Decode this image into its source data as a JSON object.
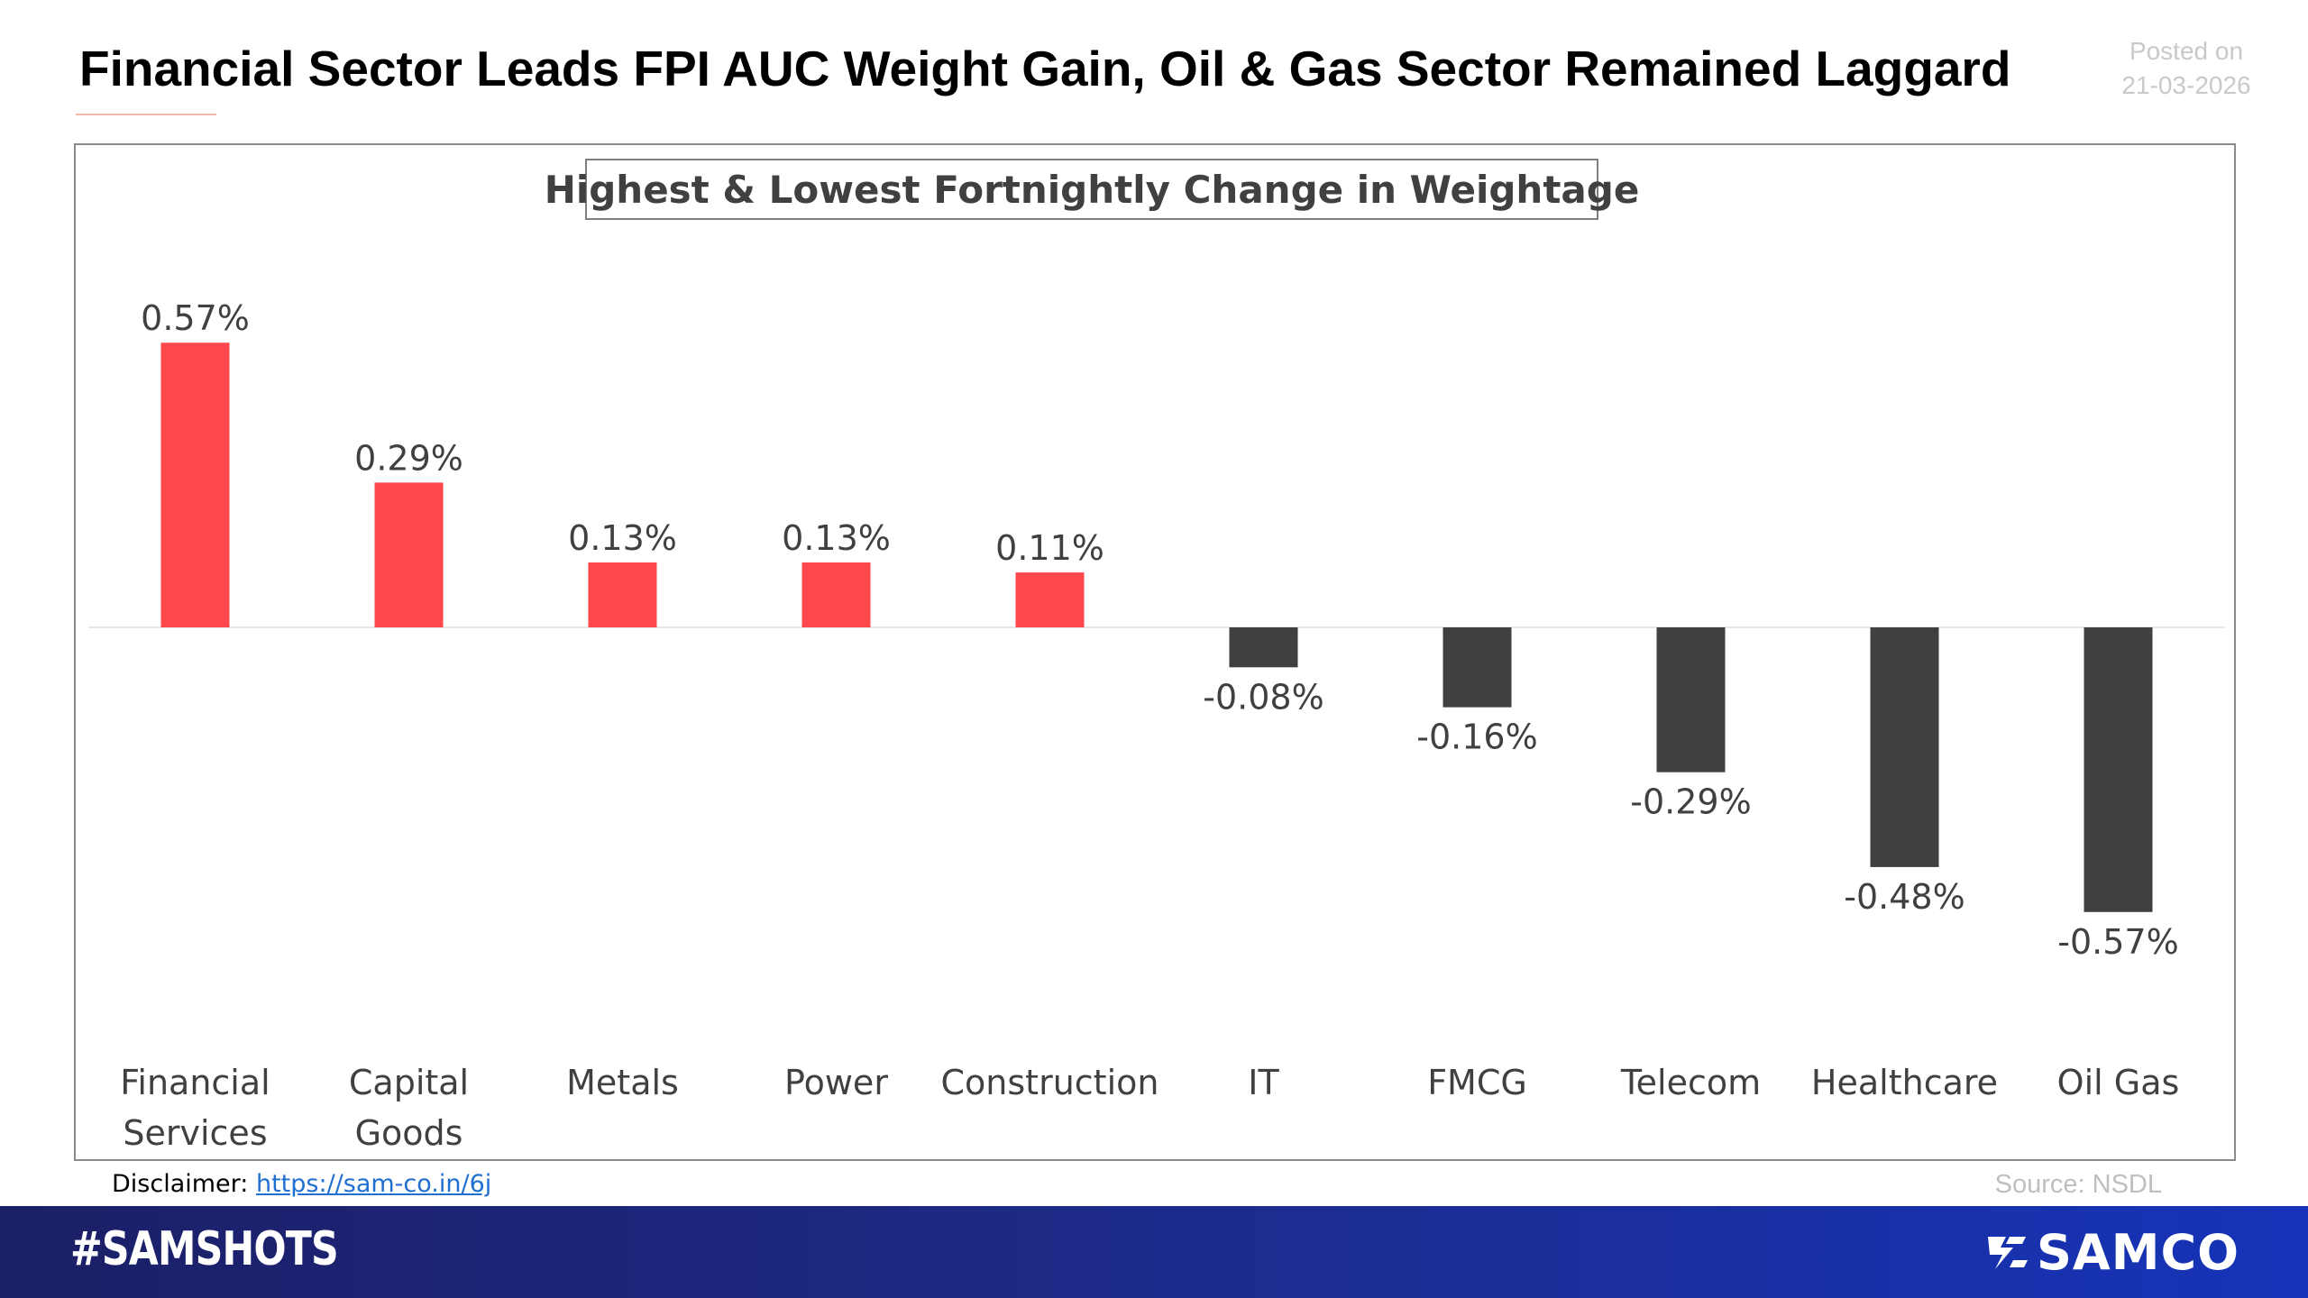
{
  "header": {
    "title": "Financial Sector Leads FPI AUC Weight Gain, Oil & Gas Sector Remained Laggard",
    "posted_label": "Posted on",
    "posted_date": "21-03-2026"
  },
  "footer": {
    "disclaimer_label": "Disclaimer:",
    "disclaimer_link": "https://sam-co.in/6j",
    "source": "Source: NSDL",
    "hashtag": "#SAMSHOTS",
    "brand": "SAMCO"
  },
  "colors": {
    "positive": "#ff474c",
    "negative": "#404040",
    "footer_bar": "#1d2a86"
  },
  "chart_data": {
    "type": "bar",
    "title": "Highest & Lowest Fortnightly Change in Weightage",
    "categories": [
      [
        "Financial",
        "Services"
      ],
      [
        "Capital",
        "Goods"
      ],
      [
        "Metals"
      ],
      [
        "Power"
      ],
      [
        "Construction"
      ],
      [
        "IT"
      ],
      [
        "FMCG"
      ],
      [
        "Telecom"
      ],
      [
        "Healthcare"
      ],
      [
        "Oil Gas"
      ]
    ],
    "values": [
      0.57,
      0.29,
      0.13,
      0.13,
      0.11,
      -0.08,
      -0.16,
      -0.29,
      -0.48,
      -0.57
    ],
    "labels": [
      "0.57%",
      "0.29%",
      "0.13%",
      "0.13%",
      "0.11%",
      "-0.08%",
      "-0.16%",
      "-0.29%",
      "-0.48%",
      "-0.57%"
    ],
    "ylim": [
      -0.6,
      0.6
    ],
    "xlabel": "",
    "ylabel": "",
    "grid": false,
    "legend": "none"
  }
}
